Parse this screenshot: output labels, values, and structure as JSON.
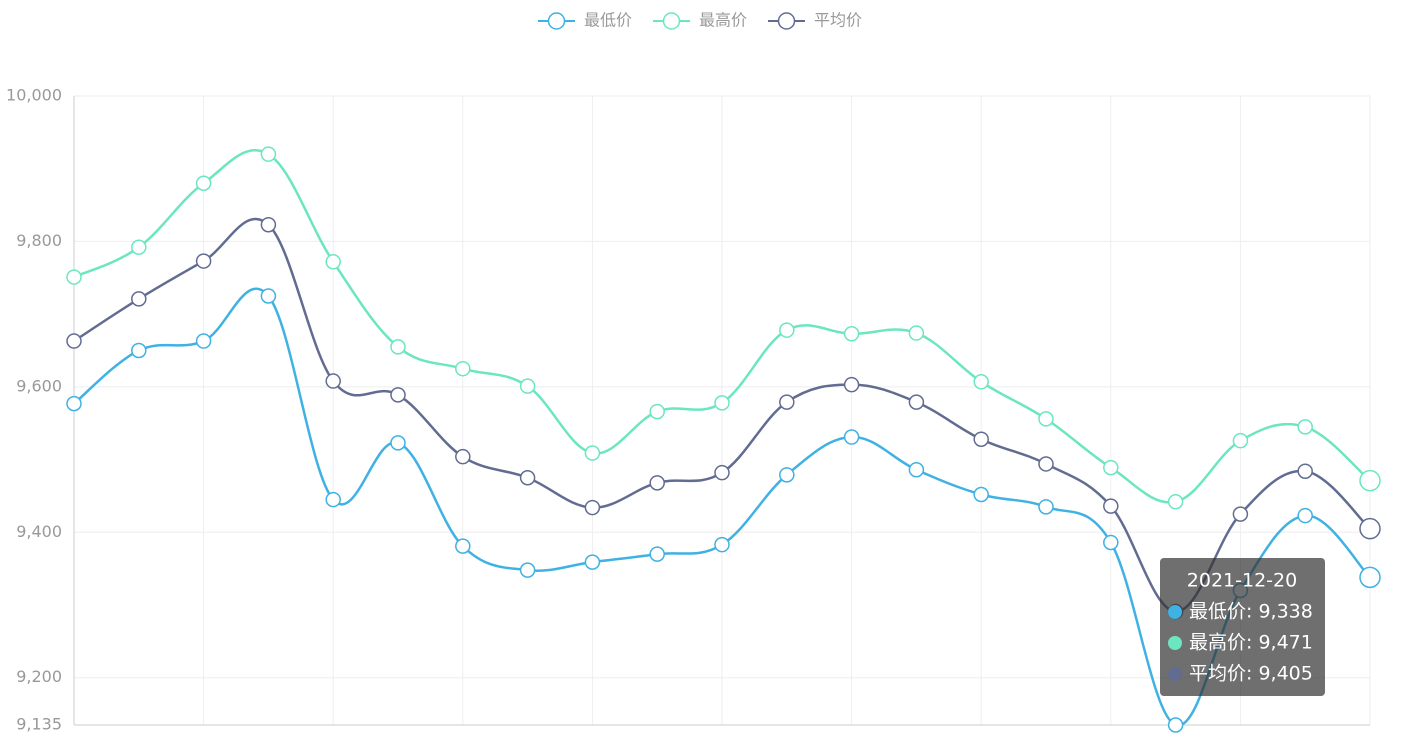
{
  "chart_data": {
    "type": "line",
    "smooth": true,
    "categories": [
      null,
      null,
      null,
      null,
      null,
      null,
      null,
      null,
      null,
      null,
      null,
      null,
      null,
      null,
      null,
      null,
      null,
      null,
      null,
      null,
      "2021-12-20"
    ],
    "series": [
      {
        "name": "最低价",
        "color": "#3fb1e3",
        "values": [
          9577,
          9650,
          9663,
          9725,
          9445,
          9523,
          9381,
          9348,
          9359,
          9370,
          9383,
          9479,
          9531,
          9486,
          9452,
          9435,
          9386,
          9135,
          9320,
          9423,
          9338
        ]
      },
      {
        "name": "最高价",
        "color": "#6be6c1",
        "values": [
          9751,
          9792,
          9880,
          9920,
          9772,
          9655,
          9625,
          9601,
          9509,
          9566,
          9578,
          9678,
          9673,
          9674,
          9607,
          9556,
          9489,
          9442,
          9526,
          9545,
          9471
        ]
      },
      {
        "name": "平均价",
        "color": "#626c91",
        "values": [
          9663,
          9721,
          9773,
          9823,
          9608,
          9589,
          9504,
          9475,
          9434,
          9468,
          9482,
          9579,
          9603,
          9579,
          9528,
          9494,
          9436,
          9291,
          9425,
          9484,
          9405
        ]
      }
    ],
    "ylim": [
      9135,
      10000
    ],
    "yticks": [
      {
        "value": 9135,
        "label": "9,135"
      },
      {
        "value": 9200,
        "label": "9,200"
      },
      {
        "value": 9400,
        "label": "9,400"
      },
      {
        "value": 9600,
        "label": "9,600"
      },
      {
        "value": 9800,
        "label": "9,800"
      },
      {
        "value": 10000,
        "label": "10,000"
      }
    ],
    "grid": true,
    "legend": "top",
    "tooltip": {
      "items": [
        "最低价: 9,338",
        "最高价: 9,471",
        "平均价: 9,405"
      ]
    }
  }
}
